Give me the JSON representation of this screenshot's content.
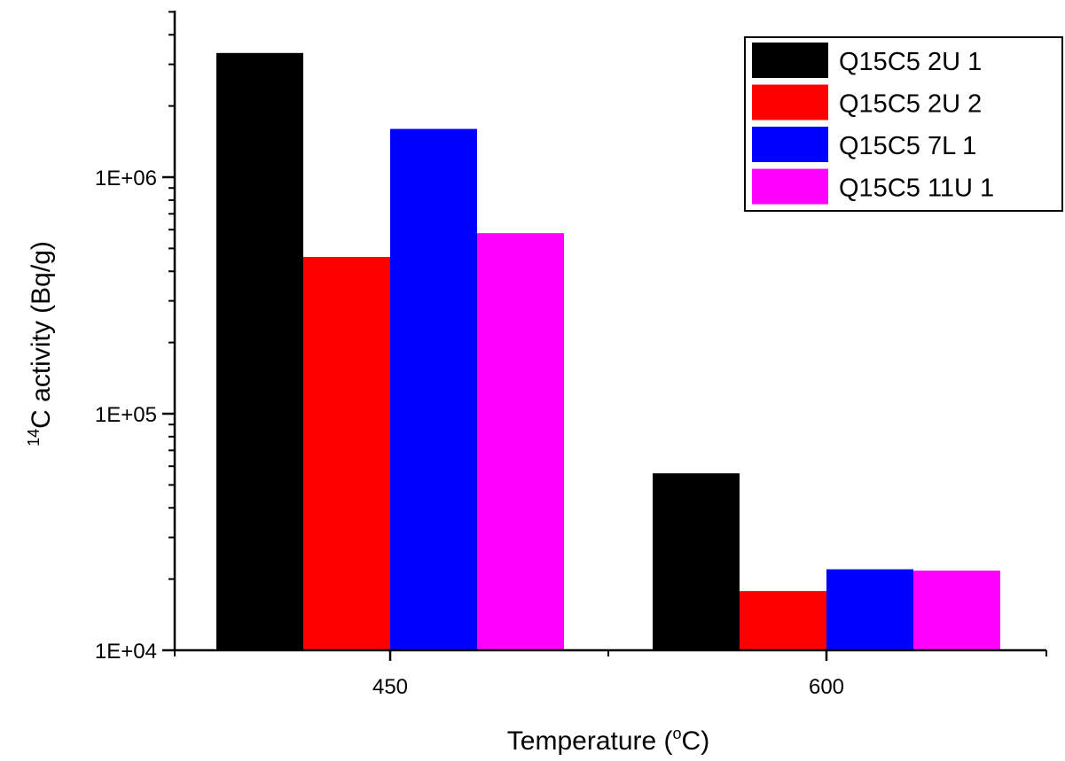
{
  "chart_data": {
    "type": "bar",
    "categories": [
      "450",
      "600"
    ],
    "series": [
      {
        "name": "Q15C5 2U 1",
        "color": "#000000",
        "values": [
          3350000,
          56000
        ]
      },
      {
        "name": "Q15C5 2U 2",
        "color": "#ff0000",
        "values": [
          460000,
          17800
        ]
      },
      {
        "name": "Q15C5 7L 1",
        "color": "#0000ff",
        "values": [
          1600000,
          22000
        ]
      },
      {
        "name": "Q15C5 11U 1",
        "color": "#ff00ff",
        "values": [
          580000,
          21700
        ]
      }
    ],
    "xlabel": "Temperature (",
    "xlabel_sup": "o",
    "xlabel_after": "C)",
    "ylabel_sup": "14",
    "ylabel": "C activity (Bq/g)",
    "y_scale": "log",
    "ylim": [
      10000,
      5000000
    ],
    "y_ticks": [
      {
        "value": 10000,
        "label": "1E+04"
      },
      {
        "value": 100000,
        "label": "1E+05"
      },
      {
        "value": 1000000,
        "label": "1E+06"
      }
    ],
    "legend_position": "top-right",
    "grid": false
  }
}
